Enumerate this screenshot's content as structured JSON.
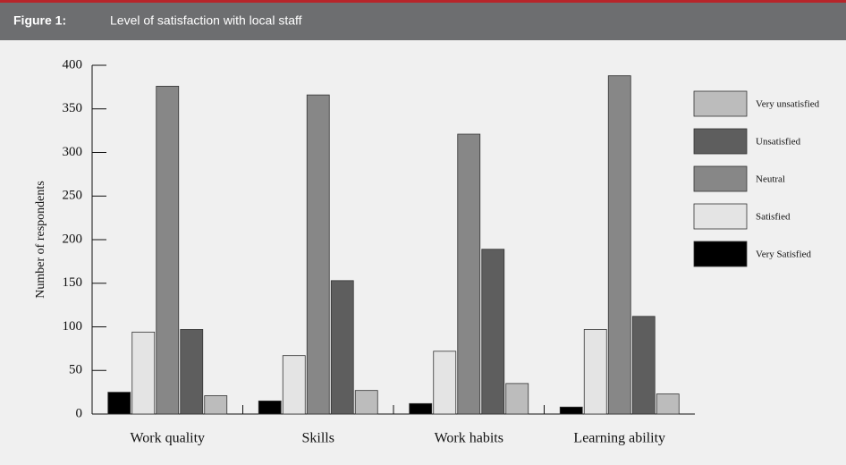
{
  "chart_data": {
    "type": "bar",
    "figure_label": "Figure 1:",
    "title": "Level of satisfaction with local staff",
    "ylabel": "Number of respondents",
    "categories": [
      "Work quality",
      "Skills",
      "Work habits",
      "Learning ability"
    ],
    "series": [
      {
        "name": "Very Satisfied",
        "color": "#000000",
        "values": [
          25,
          15,
          12,
          8
        ]
      },
      {
        "name": "Satisfied",
        "color": "#e4e4e4",
        "values": [
          94,
          67,
          72,
          97
        ]
      },
      {
        "name": "Neutral",
        "color": "#878787",
        "values": [
          376,
          366,
          321,
          388
        ]
      },
      {
        "name": "Unsatisfied",
        "color": "#5e5e5e",
        "values": [
          97,
          153,
          189,
          112
        ]
      },
      {
        "name": "Very unsatisfied",
        "color": "#bcbcbc",
        "values": [
          21,
          27,
          35,
          23
        ]
      }
    ],
    "ylim": [
      0,
      400
    ],
    "yticks": [
      0,
      50,
      100,
      150,
      200,
      250,
      300,
      350,
      400
    ],
    "legend": "right"
  }
}
